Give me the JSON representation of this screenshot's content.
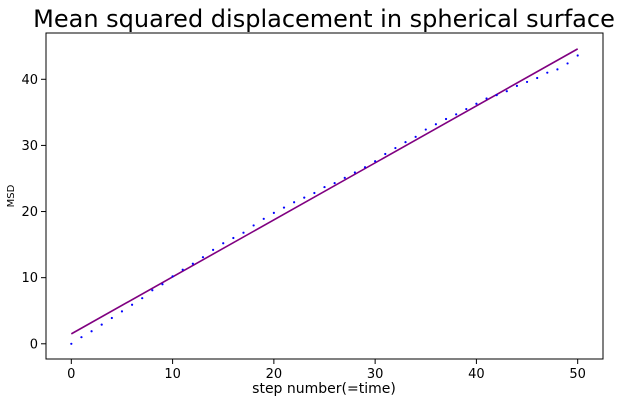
{
  "chart_data": {
    "type": "scatter",
    "title": "Mean squared displacement in spherical surface",
    "xlabel": "step number(=time)",
    "ylabel": "MSD",
    "xlim": [
      -2.5,
      52.5
    ],
    "ylim": [
      -2.3,
      47.0
    ],
    "xticks": [
      0,
      10,
      20,
      30,
      40,
      50
    ],
    "yticks": [
      0,
      10,
      20,
      30,
      40
    ],
    "grid": false,
    "colors": {
      "points": "#0000ff",
      "fit": "#800080"
    },
    "series": [
      {
        "kind": "points",
        "x": [
          0,
          1,
          2,
          3,
          4,
          5,
          6,
          7,
          8,
          9,
          10,
          11,
          12,
          13,
          14,
          15,
          16,
          17,
          18,
          19,
          20,
          21,
          22,
          23,
          24,
          25,
          26,
          27,
          28,
          29,
          30,
          31,
          32,
          33,
          34,
          35,
          36,
          37,
          38,
          39,
          40,
          41,
          42,
          43,
          44,
          45,
          46,
          47,
          48,
          49,
          50
        ],
        "y": [
          0.0,
          1.0,
          1.9,
          2.9,
          3.9,
          4.9,
          5.9,
          6.9,
          8.1,
          9.0,
          10.2,
          11.2,
          12.1,
          13.1,
          14.2,
          15.2,
          16.0,
          16.8,
          17.9,
          18.9,
          19.8,
          20.6,
          21.4,
          22.1,
          22.8,
          23.7,
          24.3,
          25.1,
          25.9,
          26.7,
          27.6,
          28.7,
          29.6,
          30.5,
          31.3,
          32.4,
          33.2,
          34.0,
          34.7,
          35.5,
          36.3,
          37.1,
          37.6,
          38.2,
          39.0,
          39.6,
          40.2,
          41.0,
          41.5,
          42.4,
          43.6
        ]
      },
      {
        "kind": "fit-line",
        "x": [
          0,
          50
        ],
        "y": [
          1.5,
          44.6
        ]
      }
    ]
  }
}
